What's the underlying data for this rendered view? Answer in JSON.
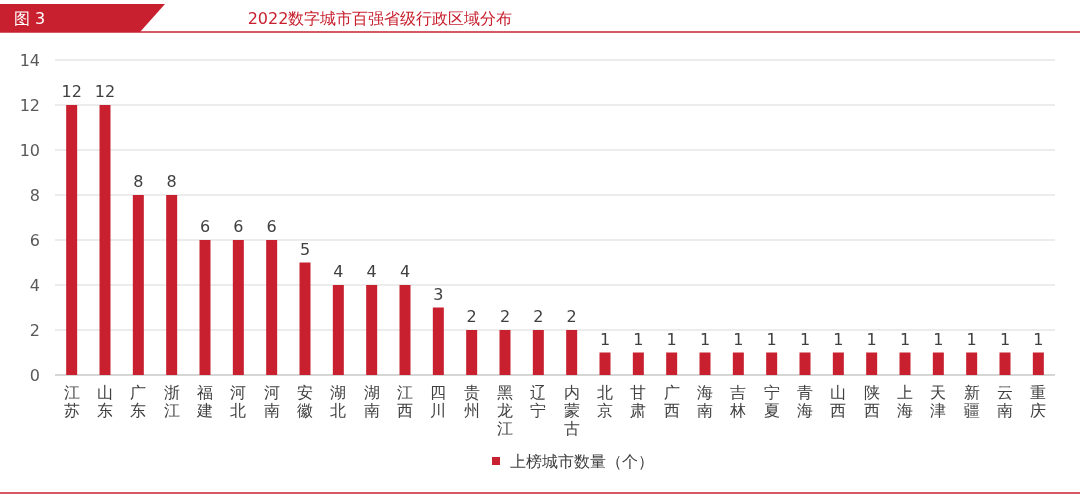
{
  "chart_data": {
    "type": "bar",
    "title": "2022数字城市百强省级行政区域分布",
    "annotations": [
      "图 3"
    ],
    "categories": [
      "江苏",
      "山东",
      "广东",
      "浙江",
      "福建",
      "河北",
      "河南",
      "安徽",
      "湖北",
      "湖南",
      "江西",
      "四川",
      "贵州",
      "黑龙江",
      "辽宁",
      "内蒙古",
      "北京",
      "甘肃",
      "广西",
      "海南",
      "吉林",
      "宁夏",
      "青海",
      "山西",
      "陕西",
      "上海",
      "天津",
      "新疆",
      "云南",
      "重庆"
    ],
    "series": [
      {
        "name": "上榜城市数量（个）",
        "color": "#c8202f",
        "values": [
          12,
          12,
          8,
          8,
          6,
          6,
          6,
          5,
          4,
          4,
          4,
          3,
          2,
          2,
          2,
          2,
          1,
          1,
          1,
          1,
          1,
          1,
          1,
          1,
          1,
          1,
          1,
          1,
          1,
          1
        ]
      }
    ],
    "ylim": [
      0,
      14
    ],
    "yticks": [
      0,
      2,
      4,
      6,
      8,
      10,
      12,
      14
    ],
    "grid": "y",
    "legend": "bottom",
    "data_labels": true
  }
}
